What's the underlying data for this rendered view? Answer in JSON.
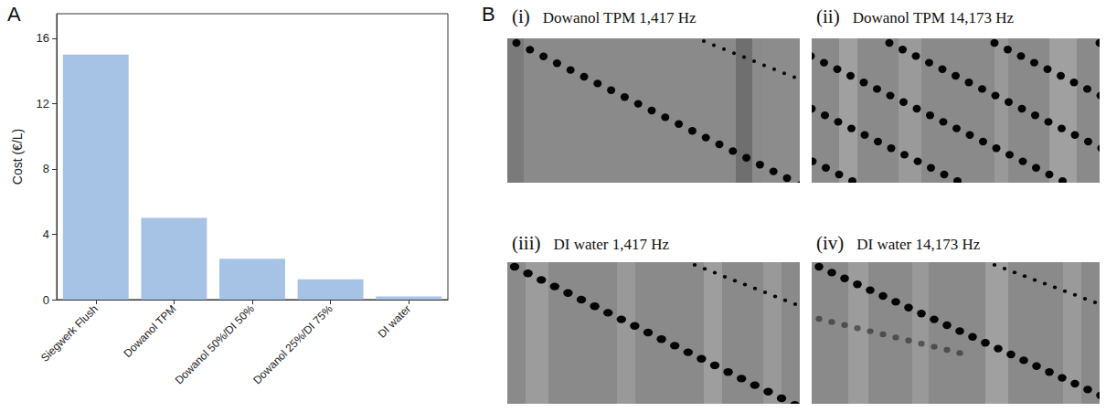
{
  "chart_data": {
    "type": "bar",
    "categories": [
      "Siegwerk Flush",
      "Dowanol TPM",
      "Dowanol 50%/DI 50%",
      "Dowanol 25%/DI 75%",
      "DI water"
    ],
    "values": [
      15,
      5,
      2.5,
      1.25,
      0.2
    ],
    "color": "#a6c3e6",
    "ylabel": "Cost (€/L)",
    "ylim": [
      0,
      17.5
    ],
    "yticks": [
      0,
      4,
      8,
      12,
      16
    ],
    "grid": false
  },
  "panels": [
    "A",
    "B"
  ],
  "images": [
    {
      "label": "(i)",
      "title": "Dowanol TPM 1,417 Hz"
    },
    {
      "label": "(ii)",
      "title": "Dowanol TPM 14,173 Hz"
    },
    {
      "label": "(iii)",
      "title": "DI water 1,417 Hz"
    },
    {
      "label": "(iv)",
      "title": "DI water 14,173 Hz"
    }
  ]
}
